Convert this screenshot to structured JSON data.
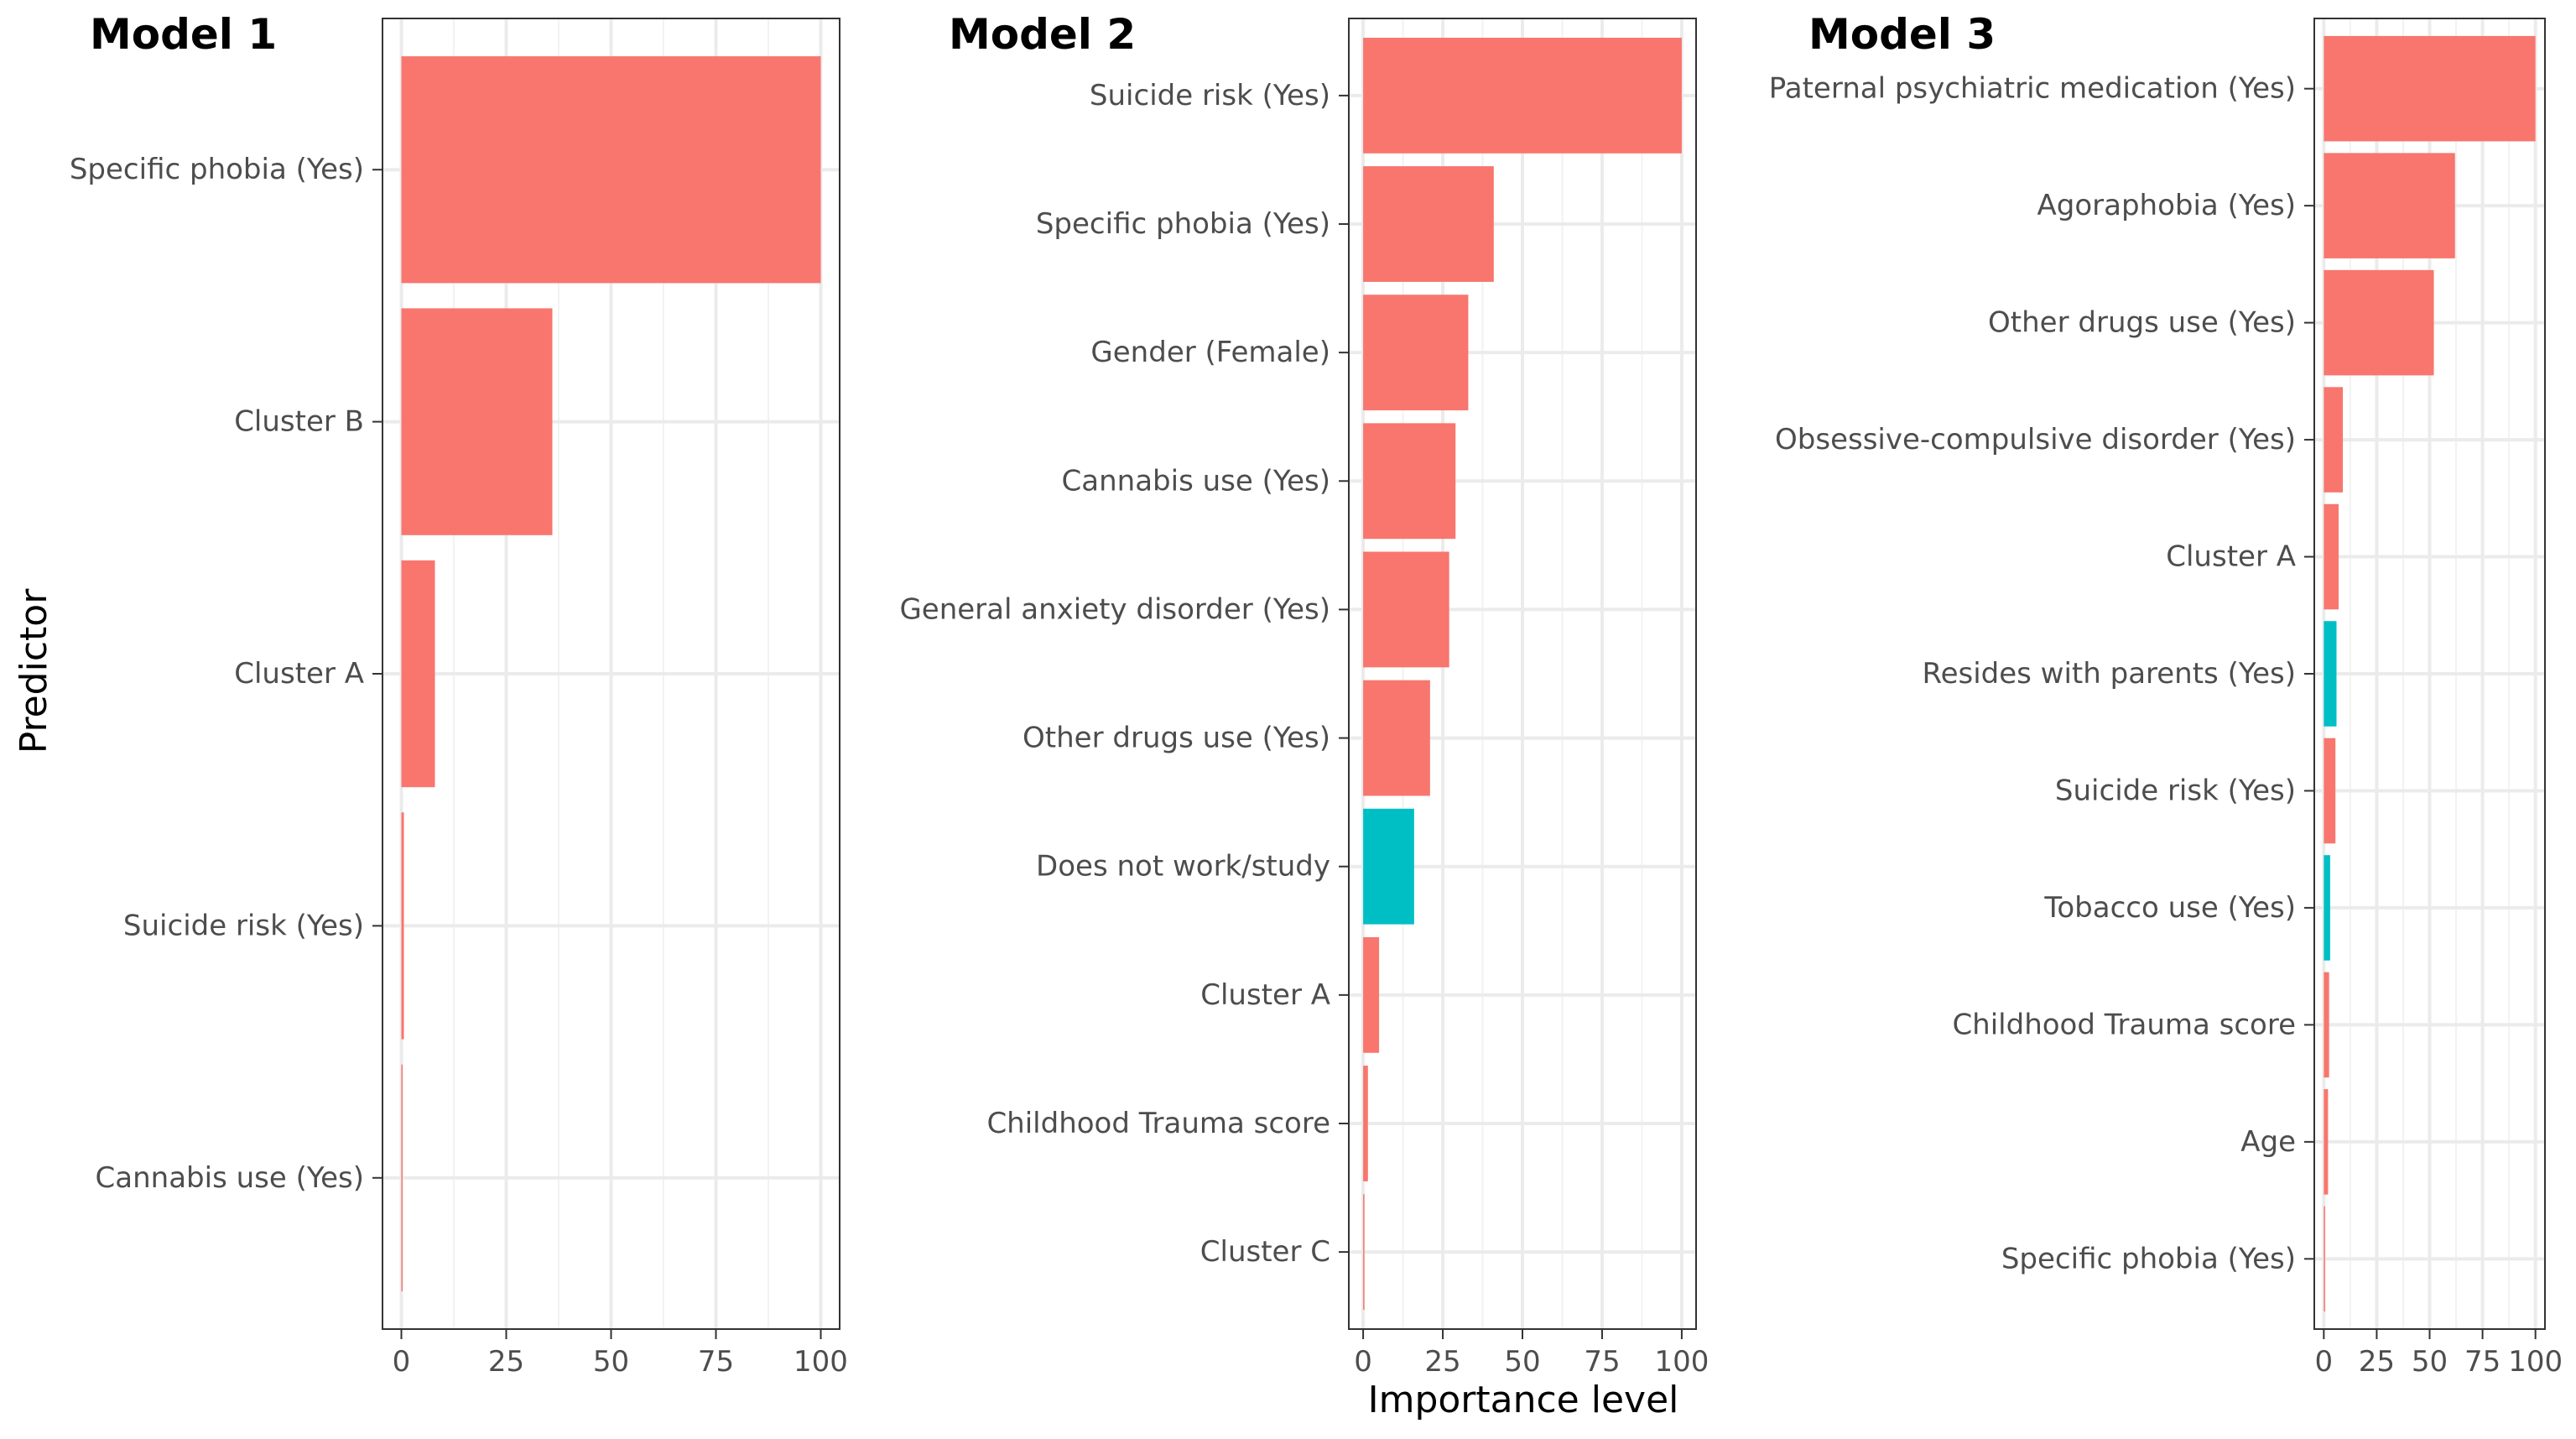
{
  "figure": {
    "xlabel": "Importance level",
    "ylabel": "Predictor"
  },
  "colors": {
    "positive": "#F8766D",
    "negative": "#00BFC4",
    "grid_major": "#EBEBEB",
    "grid_minor": "#F2F2F2",
    "panel_border": "#333333"
  },
  "chart_data": [
    {
      "type": "bar",
      "orientation": "horizontal",
      "title": "Model 1",
      "xlim": [
        0,
        100
      ],
      "xticks": [
        0,
        25,
        50,
        75,
        100
      ],
      "categories": [
        "Specific phobia (Yes)",
        "Cluster B",
        "Cluster A",
        "Suicide risk (Yes)",
        "Cannabis use (Yes)"
      ],
      "values": [
        100,
        36,
        8,
        0.6,
        0.3
      ],
      "groups": [
        "positive",
        "positive",
        "positive",
        "positive",
        "positive"
      ]
    },
    {
      "type": "bar",
      "orientation": "horizontal",
      "title": "Model 2",
      "xlim": [
        0,
        100
      ],
      "xticks": [
        0,
        25,
        50,
        75,
        100
      ],
      "categories": [
        "Suicide risk (Yes)",
        "Specific phobia (Yes)",
        "Gender (Female)",
        "Cannabis use (Yes)",
        "General anxiety disorder (Yes)",
        "Other drugs use (Yes)",
        "Does not work/study",
        "Cluster A",
        "Childhood Trauma score",
        "Cluster C"
      ],
      "values": [
        100,
        41,
        33,
        29,
        27,
        21,
        16,
        5,
        1.5,
        0.3
      ],
      "groups": [
        "positive",
        "positive",
        "positive",
        "positive",
        "positive",
        "positive",
        "negative",
        "positive",
        "positive",
        "positive"
      ]
    },
    {
      "type": "bar",
      "orientation": "horizontal",
      "title": "Model 3",
      "xlim": [
        0,
        100
      ],
      "xticks": [
        0,
        25,
        50,
        75,
        100
      ],
      "categories": [
        "Paternal psychiatric medication (Yes)",
        "Agoraphobia (Yes)",
        "Other drugs use (Yes)",
        "Obsessive-compulsive disorder (Yes)",
        "Cluster A",
        "Resides with parents (Yes)",
        "Suicide risk (Yes)",
        "Tobacco use (Yes)",
        "Childhood Trauma score",
        "Age",
        "Specific phobia (Yes)"
      ],
      "values": [
        100,
        62,
        52,
        9,
        7,
        6,
        5.5,
        3,
        2.5,
        2,
        0.3
      ],
      "groups": [
        "positive",
        "positive",
        "positive",
        "positive",
        "positive",
        "negative",
        "positive",
        "negative",
        "positive",
        "positive",
        "positive"
      ]
    }
  ]
}
